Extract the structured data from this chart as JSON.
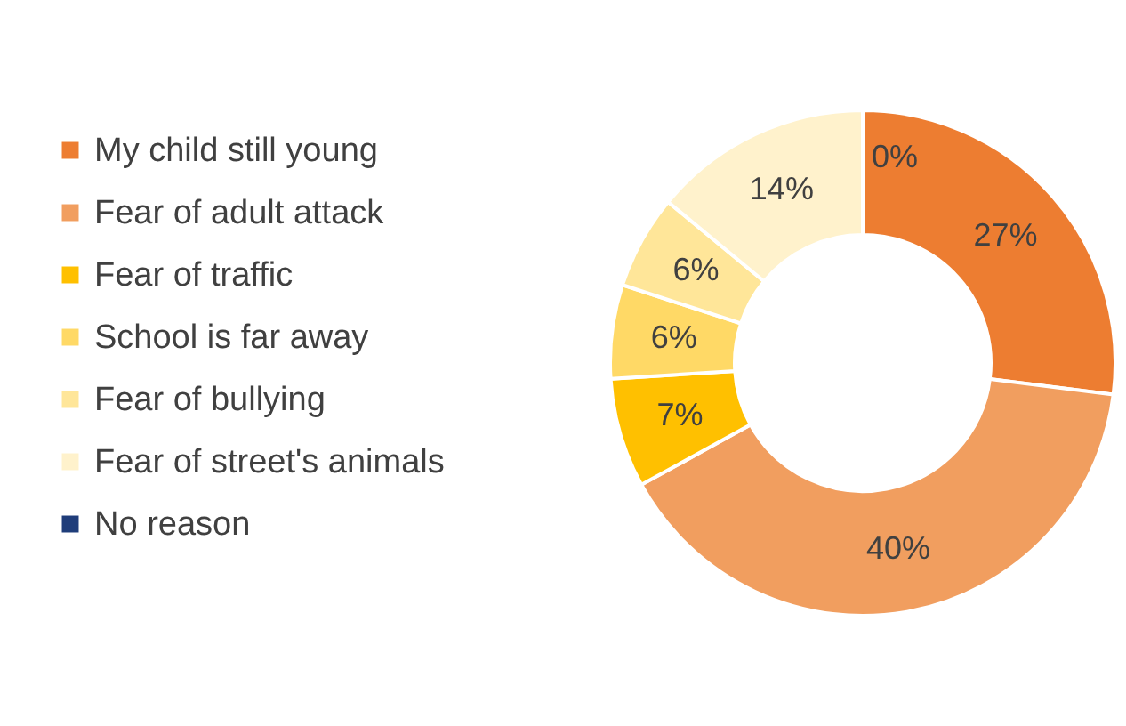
{
  "chart_data": {
    "type": "donut",
    "categories": [
      "My child still young",
      "Fear of adult attack",
      "Fear of traffic",
      "School is far away",
      "Fear of bullying",
      "Fear of street's animals",
      "No reason"
    ],
    "values": [
      27,
      40,
      7,
      6,
      6,
      14,
      0
    ],
    "value_labels": [
      "27%",
      "40%",
      "7%",
      "6%",
      "6%",
      "14%",
      "0%"
    ],
    "colors": [
      "#ed7d31",
      "#f19e5f",
      "#ffc000",
      "#ffd966",
      "#ffe699",
      "#fff2cc",
      "#1f3d7a"
    ],
    "legend": "left"
  }
}
